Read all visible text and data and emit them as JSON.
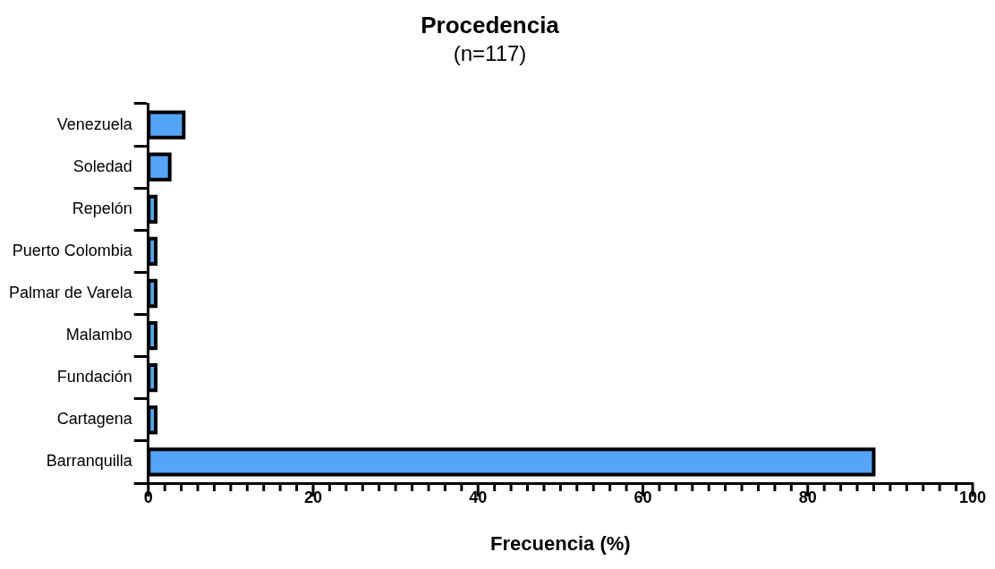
{
  "chart_data": {
    "type": "bar",
    "orientation": "horizontal",
    "title": "Procedencia",
    "subtitle": "(n=117)",
    "xlabel": "Frecuencia (%)",
    "categories": [
      "Venezuela",
      "Soledad",
      "Repelón",
      "Puerto Colombia",
      "Palmar de Varela",
      "Malambo",
      "Fundación",
      "Cartagena",
      "Barranquilla"
    ],
    "values": [
      4.3,
      2.6,
      0.9,
      0.9,
      0.9,
      0.9,
      0.9,
      0.9,
      88.0
    ],
    "color": "#55a5f7",
    "xlim": [
      0,
      100
    ],
    "xticks": [
      0,
      {
        "value": 2,
        "label": null
      },
      {
        "value": 4,
        "label": null
      },
      {
        "value": 6,
        "label": null
      },
      {
        "value": 8,
        "label": null
      },
      {
        "value": 10,
        "label": null
      },
      {
        "value": 12,
        "label": null
      },
      {
        "value": 14,
        "label": null
      },
      {
        "value": 16,
        "label": null
      },
      {
        "value": 18,
        "label": null
      },
      20,
      {
        "value": 22,
        "label": null
      },
      {
        "value": 24,
        "label": null
      },
      {
        "value": 26,
        "label": null
      },
      {
        "value": 28,
        "label": null
      },
      {
        "value": 30,
        "label": null
      },
      {
        "value": 32,
        "label": null
      },
      {
        "value": 34,
        "label": null
      },
      {
        "value": 36,
        "label": null
      },
      {
        "value": 38,
        "label": null
      },
      40,
      {
        "value": 42,
        "label": null
      },
      {
        "value": 44,
        "label": null
      },
      {
        "value": 46,
        "label": null
      },
      {
        "value": 48,
        "label": null
      },
      {
        "value": 50,
        "label": null
      },
      {
        "value": 52,
        "label": null
      },
      {
        "value": 54,
        "label": null
      },
      {
        "value": 56,
        "label": null
      },
      {
        "value": 58,
        "label": null
      },
      60,
      {
        "value": 62,
        "label": null
      },
      {
        "value": 64,
        "label": null
      },
      {
        "value": 66,
        "label": null
      },
      {
        "value": 68,
        "label": null
      },
      {
        "value": 70,
        "label": null
      },
      {
        "value": 72,
        "label": null
      },
      {
        "value": 74,
        "label": null
      },
      {
        "value": 76,
        "label": null
      },
      {
        "value": 78,
        "label": null
      },
      80,
      {
        "value": 82,
        "label": null
      },
      {
        "value": 84,
        "label": null
      },
      {
        "value": 86,
        "label": null
      },
      {
        "value": 88,
        "label": null
      },
      {
        "value": 90,
        "label": null
      },
      {
        "value": 92,
        "label": null
      },
      {
        "value": 94,
        "label": null
      },
      {
        "value": 96,
        "label": null
      },
      {
        "value": 98,
        "label": null
      },
      100
    ],
    "grid": false,
    "legend": false
  }
}
